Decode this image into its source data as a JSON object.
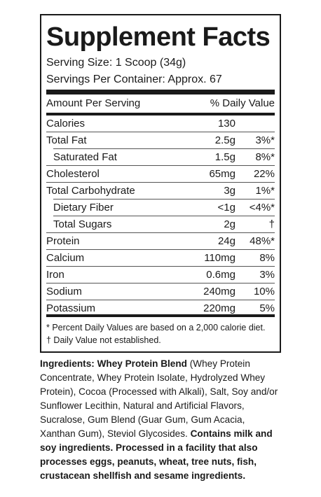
{
  "panel": {
    "title": "Supplement Facts",
    "serving_size": "Serving Size: 1 Scoop (34g)",
    "servings_per_container": "Servings Per Container: Approx. 67",
    "amount_header": "Amount Per Serving",
    "dv_header": "% Daily Value"
  },
  "rows": [
    {
      "name": "Calories",
      "amount": "130",
      "dv": ""
    },
    {
      "name": "Total Fat",
      "amount": "2.5g",
      "dv": "3%*"
    },
    {
      "name": "Saturated Fat",
      "amount": "1.5g",
      "dv": "8%*"
    },
    {
      "name": "Cholesterol",
      "amount": "65mg",
      "dv": "22%"
    },
    {
      "name": "Total Carbohydrate",
      "amount": "3g",
      "dv": "1%*"
    },
    {
      "name": "Dietary Fiber",
      "amount": "<1g",
      "dv": "<4%*"
    },
    {
      "name": "Total Sugars",
      "amount": "2g",
      "dv": "†"
    },
    {
      "name": "Protein",
      "amount": "24g",
      "dv": "48%*"
    },
    {
      "name": "Calcium",
      "amount": "110mg",
      "dv": "8%"
    },
    {
      "name": "Iron",
      "amount": "0.6mg",
      "dv": "3%"
    },
    {
      "name": "Sodium",
      "amount": "240mg",
      "dv": "10%"
    },
    {
      "name": "Potassium",
      "amount": "220mg",
      "dv": "5%"
    }
  ],
  "footnotes": {
    "percent_dv": "* Percent Daily Values are based on a 2,000 calorie diet.",
    "dagger": "† Daily Value not established."
  },
  "ingredients": {
    "label": "Ingredients:",
    "blend_name": "Whey Protein Blend",
    "text": "(Whey Protein Concentrate, Whey Protein Isolate, Hydrolyzed Whey Protein), Cocoa (Processed with Alkali), Salt, Soy and/or Sunflower Lecithin, Natural and Artificial Flavors, Sucralose, Gum Blend (Guar Gum, Gum Acacia, Xanthan Gum), Steviol Glycosides.",
    "allergen_statement": "Contains milk and soy ingredients. Processed in a facility that also processes eggs, peanuts, wheat, tree nuts, fish, crustacean shellfish and sesame ingredients."
  }
}
